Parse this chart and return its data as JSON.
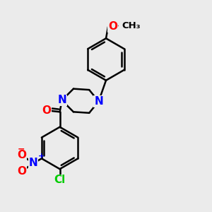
{
  "background_color": "#ebebeb",
  "bond_color": "#000000",
  "bond_width": 1.8,
  "atom_colors": {
    "N": "#0000ff",
    "O": "#ff0000",
    "Cl": "#00cc00",
    "C": "#000000"
  },
  "font_size_atoms": 11,
  "font_size_small": 9.5
}
